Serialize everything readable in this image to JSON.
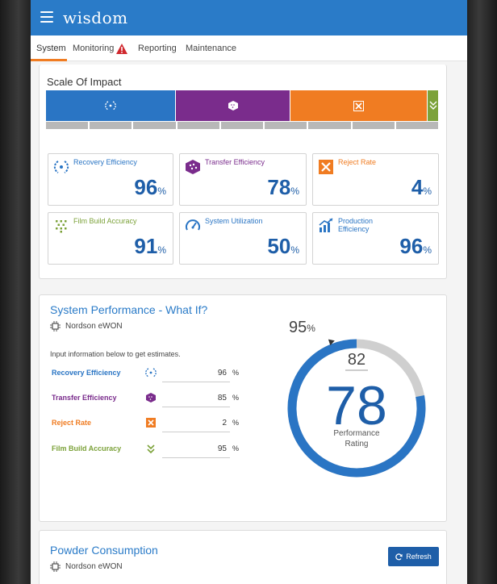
{
  "app": {
    "logo": "wisdom"
  },
  "tabs": [
    {
      "label": "System",
      "active": true
    },
    {
      "label": "Monitoring",
      "warning": true
    },
    {
      "label": "Reporting"
    },
    {
      "label": "Maintenance"
    }
  ],
  "scale": {
    "title": "Scale Of Impact",
    "segments": [
      {
        "color": "#2a75c4",
        "icon": "recovery-icon"
      },
      {
        "color": "#7a2c8c",
        "icon": "transfer-icon"
      },
      {
        "color": "#f07c22",
        "icon": "reject-icon"
      },
      {
        "color": "#7ca23a",
        "icon": "film-build-icon"
      }
    ]
  },
  "metrics": [
    {
      "label": "Recovery Efficiency",
      "value": "96",
      "unit": "%",
      "color": "#2a75c4",
      "icon": "recovery-efficiency-icon"
    },
    {
      "label": "Transfer Efficiency",
      "value": "78",
      "unit": "%",
      "color": "#7a2c8c",
      "icon": "transfer-efficiency-icon"
    },
    {
      "label": "Reject Rate",
      "value": "4",
      "unit": "%",
      "color": "#f07c22",
      "icon": "reject-rate-icon"
    },
    {
      "label": "Film Build Accuracy",
      "value": "91",
      "unit": "%",
      "color": "#7ca23a",
      "icon": "film-build-accuracy-icon"
    },
    {
      "label": "System Utilization",
      "value": "50",
      "unit": "%",
      "color": "#2a75c4",
      "icon": "system-utilization-icon"
    },
    {
      "label": "Production Efficiency",
      "value": "96",
      "unit": "%",
      "color": "#2a75c4",
      "icon": "production-efficiency-icon"
    }
  ],
  "whatif": {
    "title": "System Performance - What If?",
    "device": "Nordson eWON",
    "hint": "Input information below to get estimates.",
    "rows": [
      {
        "label": "Recovery Efficiency",
        "value": "96",
        "unit": "%",
        "color": "#2a75c4",
        "icon": "recovery-icon"
      },
      {
        "label": "Transfer Efficiency",
        "value": "85",
        "unit": "%",
        "color": "#7a2c8c",
        "icon": "transfer-icon"
      },
      {
        "label": "Reject Rate",
        "value": "2",
        "unit": "%",
        "color": "#f07c22",
        "icon": "reject-icon"
      },
      {
        "label": "Film Build Accuracy",
        "value": "95",
        "unit": "%",
        "color": "#7ca23a",
        "icon": "film-build-icon"
      }
    ],
    "gauge": {
      "target_value": "95",
      "target_unit": "%",
      "previous": "82",
      "rating": "78",
      "rating_label_line1": "Performance",
      "rating_label_line2": "Rating",
      "fill_fraction": 0.78,
      "marker_fraction": 0.95
    }
  },
  "powder": {
    "title": "Powder Consumption",
    "device": "Nordson eWON",
    "refresh_label": "Refresh"
  }
}
